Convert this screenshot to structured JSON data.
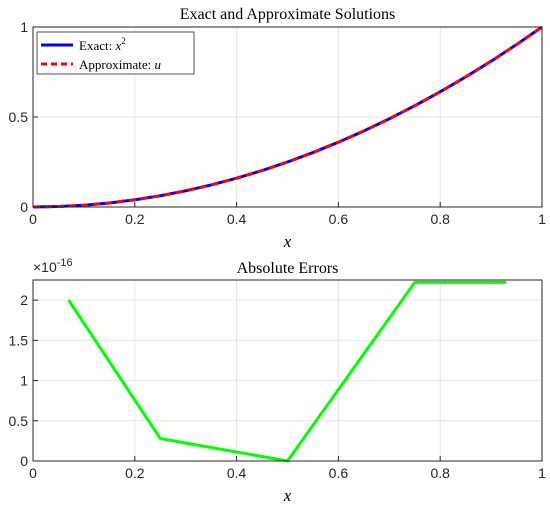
{
  "chart_data": [
    {
      "type": "line",
      "title": "Exact and Approximate Solutions",
      "xlabel": "x",
      "ylabel": "",
      "xlim": [
        0,
        1
      ],
      "ylim": [
        0,
        1
      ],
      "xticks": [
        "0",
        "0.2",
        "0.4",
        "0.6",
        "0.8",
        "1"
      ],
      "yticks": [
        "0",
        "0.5",
        "1"
      ],
      "grid": true,
      "legend_position": "top-left",
      "series": [
        {
          "name": "Exact: x²",
          "style": "solid",
          "color": "#0000ff",
          "x": [
            0,
            0.05,
            0.1,
            0.15,
            0.2,
            0.25,
            0.3,
            0.35,
            0.4,
            0.45,
            0.5,
            0.55,
            0.6,
            0.65,
            0.7,
            0.75,
            0.8,
            0.85,
            0.9,
            0.95,
            1
          ],
          "y": [
            0,
            0.0025,
            0.01,
            0.0225,
            0.04,
            0.0625,
            0.09,
            0.1225,
            0.16,
            0.2025,
            0.25,
            0.3025,
            0.36,
            0.4225,
            0.49,
            0.5625,
            0.64,
            0.7225,
            0.81,
            0.9025,
            1
          ]
        },
        {
          "name": "Approximate: u",
          "style": "dashed",
          "color": "#ff0000",
          "x": [
            0,
            0.05,
            0.1,
            0.15,
            0.2,
            0.25,
            0.3,
            0.35,
            0.4,
            0.45,
            0.5,
            0.55,
            0.6,
            0.65,
            0.7,
            0.75,
            0.8,
            0.85,
            0.9,
            0.95,
            1
          ],
          "y": [
            0,
            0.0025,
            0.01,
            0.0225,
            0.04,
            0.0625,
            0.09,
            0.1225,
            0.16,
            0.2025,
            0.25,
            0.3025,
            0.36,
            0.4225,
            0.49,
            0.5625,
            0.64,
            0.7225,
            0.81,
            0.9025,
            1
          ]
        }
      ]
    },
    {
      "type": "line",
      "title": "Absolute Errors",
      "xlabel": "x",
      "ylabel": "",
      "xlim": [
        0,
        1
      ],
      "ylim": [
        0,
        2.25
      ],
      "y_scale_exponent": "×10⁻¹⁶",
      "xticks": [
        "0",
        "0.2",
        "0.4",
        "0.6",
        "0.8",
        "1"
      ],
      "yticks": [
        "0",
        "0.5",
        "1",
        "1.5",
        "2"
      ],
      "grid": true,
      "series": [
        {
          "color": "#00ff00",
          "style": "solid",
          "x": [
            0.07,
            0.25,
            0.5,
            0.75,
            0.93
          ],
          "y": [
            2.0,
            0.28,
            0.0,
            2.22,
            2.22
          ]
        }
      ]
    }
  ]
}
